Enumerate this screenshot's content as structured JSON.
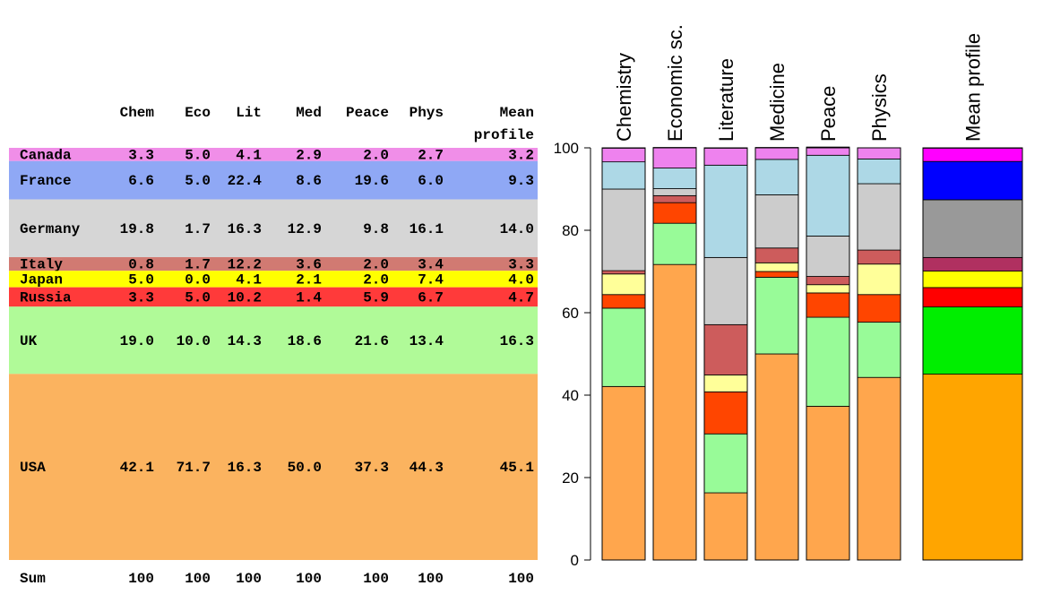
{
  "table": {
    "column_headers": [
      "Chem",
      "Eco",
      "Lit",
      "Med",
      "Peace",
      "Phys",
      "Mean profile"
    ],
    "rows": [
      {
        "country": "Canada",
        "color": "#f08ee8",
        "values": [
          "3.3",
          "5.0",
          "4.1",
          "2.9",
          "2.0",
          "2.7",
          "3.2"
        ]
      },
      {
        "country": "France",
        "color": "#8fa8f5",
        "values": [
          "6.6",
          "5.0",
          "22.4",
          "8.6",
          "19.6",
          "6.0",
          "9.3"
        ]
      },
      {
        "country": "Germany",
        "color": "#d6d6d6",
        "values": [
          "19.8",
          "1.7",
          "16.3",
          "12.9",
          "9.8",
          "16.1",
          "14.0"
        ]
      },
      {
        "country": "Italy",
        "color": "#d17a72",
        "values": [
          "0.8",
          "1.7",
          "12.2",
          "3.6",
          "2.0",
          "3.4",
          "3.3"
        ]
      },
      {
        "country": "Japan",
        "color": "#ffff00",
        "values": [
          "5.0",
          "0.0",
          "4.1",
          "2.1",
          "2.0",
          "7.4",
          "4.0"
        ]
      },
      {
        "country": "Russia",
        "color": "#ff3a3a",
        "values": [
          "3.3",
          "5.0",
          "10.2",
          "1.4",
          "5.9",
          "6.7",
          "4.7"
        ]
      },
      {
        "country": "UK",
        "color": "#b0fa98",
        "values": [
          "19.0",
          "10.0",
          "14.3",
          "18.6",
          "21.6",
          "13.4",
          "16.3"
        ]
      },
      {
        "country": "USA",
        "color": "#fbb35f",
        "values": [
          "42.1",
          "71.7",
          "16.3",
          "50.0",
          "37.3",
          "44.3",
          "45.1"
        ]
      }
    ],
    "sum_label": "Sum",
    "sum_values": [
      "100",
      "100",
      "100",
      "100",
      "100",
      "100",
      "100"
    ]
  },
  "chart_data": {
    "type": "bar",
    "stacked": true,
    "categories": [
      "Chemistry",
      "Economic sc.",
      "Literature",
      "Medicine",
      "Peace",
      "Physics",
      "Mean profile"
    ],
    "ylim": [
      0,
      100
    ],
    "yticks": [
      0,
      20,
      40,
      60,
      80,
      100
    ],
    "grid": false,
    "series": [
      {
        "name": "USA",
        "color": "#ffa64d",
        "mean_color": "#ffa500",
        "values": [
          42.1,
          71.7,
          16.3,
          50.0,
          37.3,
          44.3,
          45.1
        ]
      },
      {
        "name": "UK",
        "color": "#98fb98",
        "mean_color": "#00ee00",
        "values": [
          19.0,
          10.0,
          14.3,
          18.6,
          21.6,
          13.4,
          16.3
        ]
      },
      {
        "name": "Russia",
        "color": "#ff4500",
        "mean_color": "#ff0000",
        "values": [
          3.3,
          5.0,
          10.2,
          1.4,
          5.9,
          6.7,
          4.7
        ]
      },
      {
        "name": "Japan",
        "color": "#ffff99",
        "mean_color": "#ffff00",
        "values": [
          5.0,
          0.0,
          4.1,
          2.1,
          2.0,
          7.4,
          4.0
        ]
      },
      {
        "name": "Italy",
        "color": "#cd5c5c",
        "mean_color": "#b03060",
        "values": [
          0.8,
          1.7,
          12.2,
          3.6,
          2.0,
          3.4,
          3.3
        ]
      },
      {
        "name": "Germany",
        "color": "#cccccc",
        "mean_color": "#999999",
        "values": [
          19.8,
          1.7,
          16.3,
          12.9,
          9.8,
          16.1,
          14.0
        ]
      },
      {
        "name": "France",
        "color": "#add8e6",
        "mean_color": "#0000ff",
        "values": [
          6.6,
          5.0,
          22.4,
          8.6,
          19.6,
          6.0,
          9.3
        ]
      },
      {
        "name": "Canada",
        "color": "#ee82ee",
        "mean_color": "#ff00ff",
        "values": [
          3.3,
          5.0,
          4.1,
          2.9,
          2.0,
          2.7,
          3.2
        ]
      }
    ]
  }
}
